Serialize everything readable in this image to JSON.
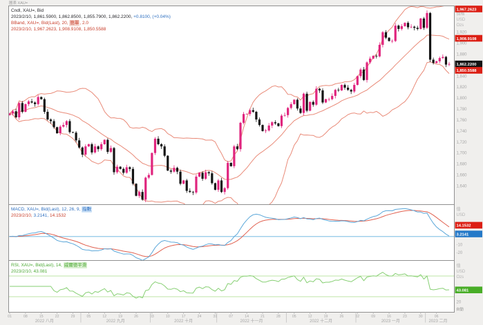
{
  "chrome": {
    "window_label": "圖表 XAU=",
    "auto_label": "自動"
  },
  "colors": {
    "up": "#e0257e",
    "down": "#141414",
    "band": "#e98a78",
    "macd": "#5ba7d9",
    "signal": "#e0604f",
    "zero": "#8fc8e8",
    "rsi": "#86cf72",
    "rsi_band": "#bce6a6",
    "badge_red": "#dc1f14",
    "badge_black": "#141414",
    "badge_blue": "#2579c8",
    "badge_green": "#48ad27",
    "axis_text": "#a6a6a6",
    "frame": "#909090"
  },
  "legend": {
    "price": {
      "l1": "Cndl, XAU=, Bid",
      "l2": "2023/2/10, 1,861.5900, 1,862.8500, 1,855.7900, 1,862.2200, ",
      "l2c": "+0.8100, (+0.04%)"
    },
    "bband": {
      "l1a": "BBand, XAU=, Bid(Last), 20, ",
      "chip": "簡單",
      "l1b": ", 2.0",
      "l2": "2023/2/10, 1,967.2623, 1,908.9108, 1,850.5588"
    },
    "macd": {
      "l1a": "MACD, XAU=, Bid(Last), 12, 26, 9, ",
      "chip": "指數",
      "d": "2023/2/10, ",
      "v1": "3.2141, ",
      "v2": "14.1532"
    },
    "rsi": {
      "l1a": "RSI, XAU=, Bid(Last), 14, ",
      "chip": "威爾德平滑",
      "l2": "2023/2/10, 43.081"
    }
  },
  "axis": {
    "price_header": [
      "價格",
      "USD",
      "Ozs"
    ],
    "macd_header": [
      "值",
      "USD"
    ],
    "rsi_header": [
      "值",
      "USD",
      "Ozs"
    ]
  },
  "chart_data": {
    "type": "candlestick",
    "symbol": "XAU=",
    "interval": "daily",
    "price_pane": {
      "ylim": [
        1606,
        1968
      ],
      "yticks": [
        {
          "v": 1920,
          "t": "1,920"
        },
        {
          "v": 1900,
          "t": "1,900"
        },
        {
          "v": 1880,
          "t": "1,880"
        },
        {
          "v": 1840,
          "t": "1,840"
        },
        {
          "v": 1820,
          "t": "1,820"
        },
        {
          "v": 1800,
          "t": "1,800"
        },
        {
          "v": 1780,
          "t": "1,780"
        },
        {
          "v": 1760,
          "t": "1,760"
        },
        {
          "v": 1740,
          "t": "1,740"
        },
        {
          "v": 1720,
          "t": "1,720"
        },
        {
          "v": 1700,
          "t": "1,700"
        },
        {
          "v": 1680,
          "t": "1,680"
        },
        {
          "v": 1660,
          "t": "1,660"
        },
        {
          "v": 1640,
          "t": "1,640"
        }
      ],
      "closes": [
        1772,
        1776,
        1765,
        1791,
        1775,
        1789,
        1794,
        1792,
        1789,
        1802,
        1798,
        1775,
        1761,
        1758,
        1747,
        1736,
        1748,
        1751,
        1758,
        1738,
        1737,
        1723,
        1710,
        1697,
        1712,
        1716,
        1701,
        1712,
        1707,
        1716,
        1724,
        1702,
        1709,
        1665,
        1675,
        1671,
        1664,
        1674,
        1671,
        1644,
        1622,
        1629,
        1615,
        1655,
        1660,
        1700,
        1726,
        1716,
        1712,
        1695,
        1668,
        1666,
        1673,
        1666,
        1644,
        1650,
        1631,
        1629,
        1628,
        1657,
        1664,
        1653,
        1665,
        1663,
        1645,
        1633,
        1650,
        1629,
        1636,
        1682,
        1676,
        1712,
        1707,
        1755,
        1771,
        1771,
        1778,
        1775,
        1761,
        1751,
        1740,
        1741,
        1750,
        1756,
        1754,
        1749,
        1768,
        1769,
        1782,
        1789,
        1797,
        1781,
        1773,
        1808,
        1777,
        1793,
        1788,
        1817,
        1814,
        1792,
        1798,
        1798,
        1804,
        1815,
        1814,
        1824,
        1819,
        1815,
        1812,
        1824,
        1840,
        1852,
        1833,
        1865,
        1872,
        1877,
        1876,
        1897,
        1920,
        1910,
        1904,
        1904,
        1932,
        1926,
        1931,
        1937,
        1929,
        1930,
        1928,
        1926,
        1945,
        1928,
        1955,
        1870,
        1864,
        1867,
        1873,
        1875,
        1861,
        1862.22
      ],
      "bollinger": {
        "period": 20,
        "mult": 2,
        "ma_type": "簡單"
      },
      "ohlc_last": {
        "date": "2023/2/10",
        "open": 1861.59,
        "high": 1862.85,
        "low": 1855.79,
        "close": 1862.22,
        "chg": 0.81,
        "chg_pct": 0.04
      },
      "badges": [
        {
          "label": "1,967.2623",
          "value": 1967.2623,
          "bg": "red"
        },
        {
          "label": "1,908.9108",
          "value": 1908.9108,
          "bg": "red"
        },
        {
          "label": "1,862.2200",
          "value": 1862.22,
          "bg": "black"
        },
        {
          "label": "1,850.5588",
          "value": 1850.5588,
          "bg": "red"
        }
      ]
    },
    "macd_pane": {
      "params": [
        12,
        26,
        9
      ],
      "ylim": [
        -30,
        40
      ],
      "yticks": [
        {
          "v": -10,
          "t": "-10"
        },
        {
          "v": -20,
          "t": "-20"
        }
      ],
      "last": {
        "macd": 3.2141,
        "signal": 14.1532
      },
      "badges": [
        {
          "label": "14.1532",
          "value": 14.1532,
          "bg": "red"
        },
        {
          "label": "3.2141",
          "value": 3.2141,
          "bg": "blue"
        }
      ]
    },
    "rsi_pane": {
      "period": 14,
      "ylim": [
        0,
        100
      ],
      "bands": [
        70,
        30
      ],
      "yticks": [
        {
          "v": 20,
          "t": "20"
        }
      ],
      "last": 43.081,
      "badges": [
        {
          "label": "43.081",
          "value": 43.081,
          "bg": "green"
        }
      ]
    },
    "x_axis": {
      "month_start_idx": [
        0,
        23,
        45,
        66,
        88,
        110,
        132
      ],
      "month_labels": [
        "2022 八月",
        "2022 九月",
        "2022 十月",
        "2022 十一月",
        "2022 十二月",
        "2023 一月",
        "2023 二月"
      ],
      "monday_ticks": [
        {
          "idx": 0,
          "label": "01"
        },
        {
          "idx": 5,
          "label": "08"
        },
        {
          "idx": 10,
          "label": "15"
        },
        {
          "idx": 15,
          "label": "22"
        },
        {
          "idx": 20,
          "label": "29"
        },
        {
          "idx": 25,
          "label": "05"
        },
        {
          "idx": 30,
          "label": "12"
        },
        {
          "idx": 35,
          "label": "19"
        },
        {
          "idx": 40,
          "label": "26"
        },
        {
          "idx": 45,
          "label": "03"
        },
        {
          "idx": 50,
          "label": "10"
        },
        {
          "idx": 55,
          "label": "17"
        },
        {
          "idx": 60,
          "label": "24"
        },
        {
          "idx": 65,
          "label": "31"
        },
        {
          "idx": 70,
          "label": "07"
        },
        {
          "idx": 75,
          "label": "14"
        },
        {
          "idx": 80,
          "label": "21"
        },
        {
          "idx": 85,
          "label": "28"
        },
        {
          "idx": 90,
          "label": "05"
        },
        {
          "idx": 95,
          "label": "12"
        },
        {
          "idx": 100,
          "label": "19"
        },
        {
          "idx": 105,
          "label": "26"
        },
        {
          "idx": 110,
          "label": "02"
        },
        {
          "idx": 115,
          "label": "09"
        },
        {
          "idx": 120,
          "label": "16"
        },
        {
          "idx": 125,
          "label": "23"
        },
        {
          "idx": 130,
          "label": "30"
        },
        {
          "idx": 135,
          "label": "06"
        }
      ]
    }
  }
}
